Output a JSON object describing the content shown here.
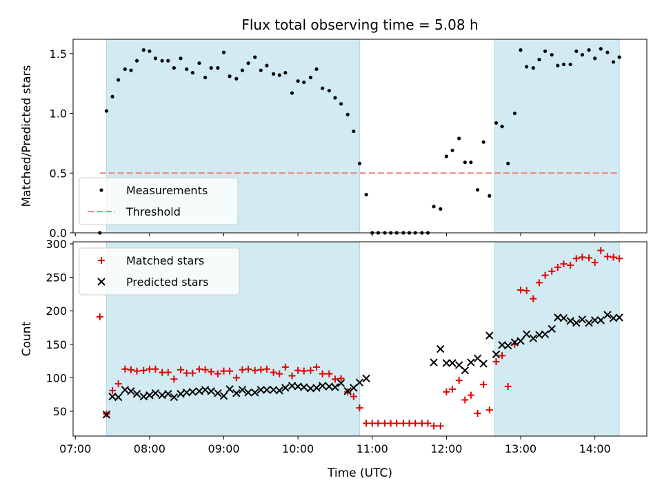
{
  "title": "Flux total observing time = 5.08 h",
  "colors": {
    "measurement": "#000000",
    "threshold": "#f08080",
    "matched": "#e00000",
    "predicted": "#000000",
    "shade": "#add8e6"
  },
  "chart_data": [
    {
      "type": "scatter",
      "name": "ratio-panel",
      "xlabel": "",
      "ylabel": "Matched/Predicted stars",
      "xlim": [
        6.97,
        14.7
      ],
      "ylim": [
        0,
        1.62
      ],
      "yticks": [
        0.0,
        0.5,
        1.0,
        1.5
      ],
      "ytick_labels": [
        "0.0",
        "0.5",
        "1.0",
        "1.5"
      ],
      "shaded_spans": [
        [
          7.42,
          10.83
        ],
        [
          12.65,
          14.33
        ]
      ],
      "threshold": {
        "y": 0.5,
        "x_range": [
          7.33,
          14.33
        ],
        "label": "Threshold"
      },
      "legend": {
        "location": "lower-left",
        "entries": [
          "Measurements",
          "Threshold"
        ]
      },
      "series": [
        {
          "name": "Measurements",
          "points": [
            [
              7.33,
              0.0
            ],
            [
              7.42,
              1.02
            ],
            [
              7.5,
              1.14
            ],
            [
              7.58,
              1.28
            ],
            [
              7.67,
              1.37
            ],
            [
              7.75,
              1.36
            ],
            [
              7.83,
              1.44
            ],
            [
              7.92,
              1.53
            ],
            [
              8.0,
              1.52
            ],
            [
              8.08,
              1.46
            ],
            [
              8.17,
              1.44
            ],
            [
              8.25,
              1.44
            ],
            [
              8.33,
              1.38
            ],
            [
              8.42,
              1.46
            ],
            [
              8.5,
              1.37
            ],
            [
              8.58,
              1.34
            ],
            [
              8.67,
              1.42
            ],
            [
              8.75,
              1.3
            ],
            [
              8.83,
              1.38
            ],
            [
              8.92,
              1.38
            ],
            [
              9.0,
              1.51
            ],
            [
              9.08,
              1.31
            ],
            [
              9.17,
              1.29
            ],
            [
              9.25,
              1.36
            ],
            [
              9.33,
              1.42
            ],
            [
              9.42,
              1.47
            ],
            [
              9.5,
              1.36
            ],
            [
              9.58,
              1.4
            ],
            [
              9.67,
              1.33
            ],
            [
              9.75,
              1.32
            ],
            [
              9.83,
              1.34
            ],
            [
              9.92,
              1.17
            ],
            [
              10.0,
              1.27
            ],
            [
              10.08,
              1.26
            ],
            [
              10.17,
              1.3
            ],
            [
              10.25,
              1.37
            ],
            [
              10.33,
              1.21
            ],
            [
              10.42,
              1.19
            ],
            [
              10.5,
              1.13
            ],
            [
              10.58,
              1.08
            ],
            [
              10.67,
              0.99
            ],
            [
              10.75,
              0.85
            ],
            [
              10.83,
              0.58
            ],
            [
              10.92,
              0.32
            ],
            [
              11.0,
              0.0
            ],
            [
              11.08,
              0.0
            ],
            [
              11.17,
              0.0
            ],
            [
              11.25,
              0.0
            ],
            [
              11.33,
              0.0
            ],
            [
              11.42,
              0.0
            ],
            [
              11.5,
              0.0
            ],
            [
              11.58,
              0.0
            ],
            [
              11.67,
              0.0
            ],
            [
              11.75,
              0.0
            ],
            [
              11.83,
              0.22
            ],
            [
              11.92,
              0.2
            ],
            [
              12.0,
              0.64
            ],
            [
              12.08,
              0.69
            ],
            [
              12.17,
              0.79
            ],
            [
              12.25,
              0.59
            ],
            [
              12.33,
              0.59
            ],
            [
              12.42,
              0.36
            ],
            [
              12.5,
              0.76
            ],
            [
              12.58,
              0.31
            ],
            [
              12.67,
              0.92
            ],
            [
              12.75,
              0.89
            ],
            [
              12.83,
              0.58
            ],
            [
              12.92,
              1.0
            ],
            [
              13.0,
              1.53
            ],
            [
              13.08,
              1.39
            ],
            [
              13.17,
              1.38
            ],
            [
              13.25,
              1.45
            ],
            [
              13.33,
              1.52
            ],
            [
              13.42,
              1.49
            ],
            [
              13.5,
              1.4
            ],
            [
              13.58,
              1.41
            ],
            [
              13.67,
              1.41
            ],
            [
              13.75,
              1.52
            ],
            [
              13.83,
              1.49
            ],
            [
              13.92,
              1.53
            ],
            [
              14.0,
              1.46
            ],
            [
              14.08,
              1.54
            ],
            [
              14.17,
              1.51
            ],
            [
              14.25,
              1.43
            ],
            [
              14.33,
              1.47
            ]
          ]
        }
      ]
    },
    {
      "type": "scatter",
      "name": "count-panel",
      "xlabel": "Time (UTC)",
      "ylabel": "Count",
      "xlim": [
        6.97,
        14.7
      ],
      "ylim": [
        13,
        303
      ],
      "yticks": [
        50,
        100,
        150,
        200,
        250,
        300
      ],
      "ytick_labels": [
        "50",
        "100",
        "150",
        "200",
        "250",
        "300"
      ],
      "xticks": [
        7,
        8,
        9,
        10,
        11,
        12,
        13,
        14
      ],
      "xtick_labels": [
        "07:00",
        "08:00",
        "09:00",
        "10:00",
        "11:00",
        "12:00",
        "13:00",
        "14:00"
      ],
      "shaded_spans": [
        [
          7.42,
          10.83
        ],
        [
          12.65,
          14.33
        ]
      ],
      "legend": {
        "location": "upper-left",
        "entries": [
          "Matched stars",
          "Predicted stars"
        ]
      },
      "series": [
        {
          "name": "Matched stars",
          "points": [
            [
              7.33,
              191
            ],
            [
              7.42,
              46
            ],
            [
              7.5,
              81
            ],
            [
              7.58,
              91
            ],
            [
              7.67,
              113
            ],
            [
              7.75,
              112
            ],
            [
              7.83,
              110
            ],
            [
              7.92,
              111
            ],
            [
              8.0,
              113
            ],
            [
              8.08,
              113
            ],
            [
              8.17,
              108
            ],
            [
              8.25,
              108
            ],
            [
              8.33,
              98
            ],
            [
              8.42,
              112
            ],
            [
              8.5,
              107
            ],
            [
              8.58,
              107
            ],
            [
              8.67,
              113
            ],
            [
              8.75,
              112
            ],
            [
              8.83,
              109
            ],
            [
              8.92,
              106
            ],
            [
              9.0,
              110
            ],
            [
              9.08,
              110
            ],
            [
              9.17,
              100
            ],
            [
              9.25,
              112
            ],
            [
              9.33,
              113
            ],
            [
              9.42,
              111
            ],
            [
              9.5,
              112
            ],
            [
              9.58,
              113
            ],
            [
              9.67,
              108
            ],
            [
              9.75,
              106
            ],
            [
              9.83,
              116
            ],
            [
              9.92,
              103
            ],
            [
              10.0,
              111
            ],
            [
              10.08,
              110
            ],
            [
              10.17,
              111
            ],
            [
              10.25,
              116
            ],
            [
              10.33,
              106
            ],
            [
              10.42,
              106
            ],
            [
              10.5,
              98
            ],
            [
              10.58,
              99
            ],
            [
              10.67,
              79
            ],
            [
              10.75,
              72
            ],
            [
              10.83,
              55
            ],
            [
              10.92,
              32
            ],
            [
              11.0,
              32
            ],
            [
              11.08,
              32
            ],
            [
              11.17,
              32
            ],
            [
              11.25,
              32
            ],
            [
              11.33,
              32
            ],
            [
              11.42,
              32
            ],
            [
              11.5,
              32
            ],
            [
              11.58,
              32
            ],
            [
              11.67,
              32
            ],
            [
              11.75,
              32
            ],
            [
              11.83,
              28
            ],
            [
              11.92,
              28
            ],
            [
              12.0,
              79
            ],
            [
              12.08,
              83
            ],
            [
              12.17,
              96
            ],
            [
              12.25,
              67
            ],
            [
              12.33,
              74
            ],
            [
              12.42,
              47
            ],
            [
              12.5,
              90
            ],
            [
              12.58,
              52
            ],
            [
              12.67,
              124
            ],
            [
              12.75,
              133
            ],
            [
              12.83,
              87
            ],
            [
              12.92,
              150
            ],
            [
              13.0,
              231
            ],
            [
              13.08,
              230
            ],
            [
              13.17,
              218
            ],
            [
              13.25,
              242
            ],
            [
              13.33,
              253
            ],
            [
              13.42,
              259
            ],
            [
              13.5,
              265
            ],
            [
              13.58,
              270
            ],
            [
              13.67,
              268
            ],
            [
              13.75,
              278
            ],
            [
              13.83,
              280
            ],
            [
              13.92,
              279
            ],
            [
              14.0,
              272
            ],
            [
              14.08,
              290
            ],
            [
              14.17,
              281
            ],
            [
              14.25,
              280
            ],
            [
              14.33,
              278
            ]
          ]
        },
        {
          "name": "Predicted stars",
          "points": [
            [
              7.42,
              45
            ],
            [
              7.5,
              72
            ],
            [
              7.58,
              71
            ],
            [
              7.67,
              82
            ],
            [
              7.75,
              80
            ],
            [
              7.83,
              76
            ],
            [
              7.92,
              72
            ],
            [
              8.0,
              74
            ],
            [
              8.08,
              77
            ],
            [
              8.17,
              74
            ],
            [
              8.25,
              76
            ],
            [
              8.33,
              71
            ],
            [
              8.42,
              76
            ],
            [
              8.5,
              78
            ],
            [
              8.58,
              79
            ],
            [
              8.67,
              80
            ],
            [
              8.75,
              82
            ],
            [
              8.83,
              80
            ],
            [
              8.92,
              77
            ],
            [
              9.0,
              73
            ],
            [
              9.08,
              83
            ],
            [
              9.17,
              77
            ],
            [
              9.25,
              82
            ],
            [
              9.33,
              78
            ],
            [
              9.42,
              78
            ],
            [
              9.5,
              82
            ],
            [
              9.58,
              82
            ],
            [
              9.67,
              82
            ],
            [
              9.75,
              81
            ],
            [
              9.83,
              85
            ],
            [
              9.92,
              88
            ],
            [
              10.0,
              87
            ],
            [
              10.08,
              86
            ],
            [
              10.17,
              84
            ],
            [
              10.25,
              85
            ],
            [
              10.33,
              88
            ],
            [
              10.42,
              87
            ],
            [
              10.5,
              86
            ],
            [
              10.58,
              92
            ],
            [
              10.67,
              80
            ],
            [
              10.75,
              85
            ],
            [
              10.83,
              93
            ],
            [
              10.92,
              99
            ],
            [
              11.83,
              123
            ],
            [
              11.92,
              143
            ],
            [
              12.0,
              122
            ],
            [
              12.08,
              122
            ],
            [
              12.17,
              119
            ],
            [
              12.25,
              111
            ],
            [
              12.33,
              123
            ],
            [
              12.42,
              129
            ],
            [
              12.5,
              121
            ],
            [
              12.58,
              163
            ],
            [
              12.67,
              135
            ],
            [
              12.75,
              149
            ],
            [
              12.83,
              148
            ],
            [
              12.92,
              153
            ],
            [
              13.0,
              155
            ],
            [
              13.08,
              165
            ],
            [
              13.17,
              159
            ],
            [
              13.25,
              164
            ],
            [
              13.33,
              165
            ],
            [
              13.42,
              173
            ],
            [
              13.5,
              190
            ],
            [
              13.58,
              189
            ],
            [
              13.67,
              185
            ],
            [
              13.75,
              182
            ],
            [
              13.83,
              187
            ],
            [
              13.92,
              182
            ],
            [
              14.0,
              186
            ],
            [
              14.08,
              186
            ],
            [
              14.17,
              194
            ],
            [
              14.25,
              189
            ],
            [
              14.33,
              190
            ]
          ]
        }
      ]
    }
  ]
}
